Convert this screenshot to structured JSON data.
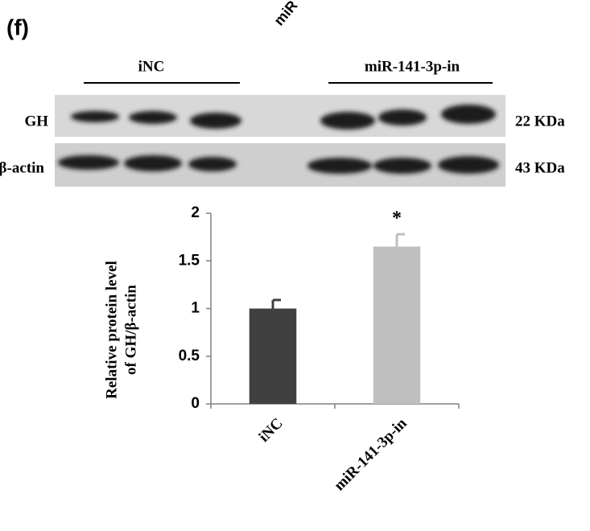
{
  "panel_label": "(f)",
  "cropped_label": "miR",
  "blot": {
    "group_labels": [
      "iNC",
      "miR-141-3p-in"
    ],
    "row_labels": [
      "GH",
      "β-actin"
    ],
    "size_labels": [
      "22 KDa",
      "43 KDa"
    ]
  },
  "chart_data": {
    "type": "bar",
    "y_label": [
      "Relative protein level",
      "of GH/β-actin"
    ],
    "categories": [
      "iNC",
      "miR-141-3p-in"
    ],
    "values": [
      1.0,
      1.65
    ],
    "errors": [
      0.09,
      0.13
    ],
    "colors": [
      "#404040",
      "#bfbfbf"
    ],
    "annotations": [
      "",
      "*"
    ],
    "ylim": [
      0,
      2
    ],
    "yticks": [
      0,
      0.5,
      1,
      1.5,
      2
    ],
    "grid": false
  }
}
